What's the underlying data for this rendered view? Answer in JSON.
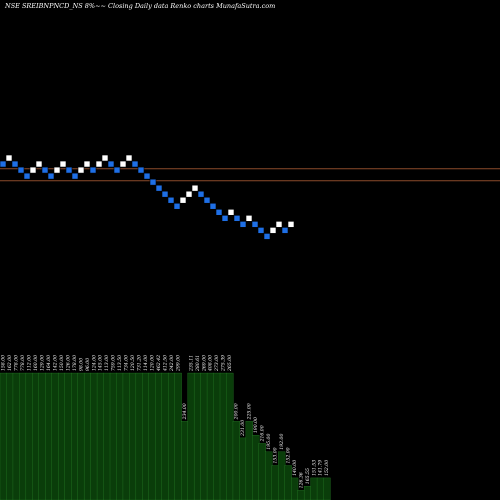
{
  "chart_data": {
    "type": "renko",
    "title": "NSE SREIBNPNCD_NS 8%~~ Closing Daily data Renko charts MunafaSutra.com",
    "colors": {
      "background": "#000000",
      "bull_brick": "#ffffff",
      "bear_brick": "#1e6fe6",
      "reference_line": "#8b4a2a",
      "volume_fill": "#0a3d0a",
      "volume_edge": "#2d8c2d",
      "text": "#ffffff"
    },
    "price_ylim": [
      0,
      1
    ],
    "reference_lines": [
      0.556,
      0.52
    ],
    "bricks": [
      {
        "dir": "down",
        "y": 0.57
      },
      {
        "dir": "up",
        "y": 0.588
      },
      {
        "dir": "down",
        "y": 0.57
      },
      {
        "dir": "down",
        "y": 0.552
      },
      {
        "dir": "down",
        "y": 0.534
      },
      {
        "dir": "up",
        "y": 0.552
      },
      {
        "dir": "up",
        "y": 0.57
      },
      {
        "dir": "down",
        "y": 0.552
      },
      {
        "dir": "down",
        "y": 0.534
      },
      {
        "dir": "up",
        "y": 0.552
      },
      {
        "dir": "up",
        "y": 0.57
      },
      {
        "dir": "down",
        "y": 0.552
      },
      {
        "dir": "down",
        "y": 0.534
      },
      {
        "dir": "up",
        "y": 0.552
      },
      {
        "dir": "up",
        "y": 0.57
      },
      {
        "dir": "down",
        "y": 0.552
      },
      {
        "dir": "up",
        "y": 0.57
      },
      {
        "dir": "up",
        "y": 0.588
      },
      {
        "dir": "down",
        "y": 0.57
      },
      {
        "dir": "down",
        "y": 0.552
      },
      {
        "dir": "up",
        "y": 0.57
      },
      {
        "dir": "up",
        "y": 0.588
      },
      {
        "dir": "down",
        "y": 0.57
      },
      {
        "dir": "down",
        "y": 0.552
      },
      {
        "dir": "down",
        "y": 0.534
      },
      {
        "dir": "down",
        "y": 0.516
      },
      {
        "dir": "down",
        "y": 0.498
      },
      {
        "dir": "down",
        "y": 0.48
      },
      {
        "dir": "down",
        "y": 0.462
      },
      {
        "dir": "down",
        "y": 0.444
      },
      {
        "dir": "up",
        "y": 0.462
      },
      {
        "dir": "up",
        "y": 0.48
      },
      {
        "dir": "up",
        "y": 0.498
      },
      {
        "dir": "down",
        "y": 0.48
      },
      {
        "dir": "down",
        "y": 0.462
      },
      {
        "dir": "down",
        "y": 0.444
      },
      {
        "dir": "down",
        "y": 0.426
      },
      {
        "dir": "down",
        "y": 0.408
      },
      {
        "dir": "up",
        "y": 0.426
      },
      {
        "dir": "down",
        "y": 0.408
      },
      {
        "dir": "down",
        "y": 0.39
      },
      {
        "dir": "up",
        "y": 0.408
      },
      {
        "dir": "down",
        "y": 0.39
      },
      {
        "dir": "down",
        "y": 0.372
      },
      {
        "dir": "down",
        "y": 0.354
      },
      {
        "dir": "up",
        "y": 0.372
      },
      {
        "dir": "up",
        "y": 0.39
      },
      {
        "dir": "down",
        "y": 0.372
      },
      {
        "dir": "up",
        "y": 0.39
      }
    ],
    "volume_ylim": [
      0,
      1
    ],
    "volume": [
      {
        "value": 0.92,
        "label": "158.00"
      },
      {
        "value": 0.92,
        "label": "162.00"
      },
      {
        "value": 0.92,
        "label": "778.00"
      },
      {
        "value": 0.92,
        "label": "778.00"
      },
      {
        "value": 0.92,
        "label": "112.00"
      },
      {
        "value": 0.92,
        "label": "160.00"
      },
      {
        "value": 0.92,
        "label": "129.00"
      },
      {
        "value": 0.92,
        "label": "164.00"
      },
      {
        "value": 0.92,
        "label": "142.00"
      },
      {
        "value": 0.92,
        "label": "150.00"
      },
      {
        "value": 0.92,
        "label": "126.00"
      },
      {
        "value": 0.92,
        "label": "178.00"
      },
      {
        "value": 0.92,
        "label": "98.00"
      },
      {
        "value": 0.92,
        "label": "96.00"
      },
      {
        "value": 0.92,
        "label": "124.00"
      },
      {
        "value": 0.92,
        "label": "145.00"
      },
      {
        "value": 0.92,
        "label": "113.00"
      },
      {
        "value": 0.92,
        "label": "759.00"
      },
      {
        "value": 0.92,
        "label": "113.50"
      },
      {
        "value": 0.92,
        "label": "734.00"
      },
      {
        "value": 0.92,
        "label": "120.50"
      },
      {
        "value": 0.92,
        "label": "731.20"
      },
      {
        "value": 0.92,
        "label": "114.00"
      },
      {
        "value": 0.92,
        "label": "120.00"
      },
      {
        "value": 0.92,
        "label": "462.42"
      },
      {
        "value": 0.92,
        "label": "412.50"
      },
      {
        "value": 0.92,
        "label": "242.00"
      },
      {
        "value": 0.92,
        "label": "299.00"
      },
      {
        "value": 0.57,
        "label": "234.00"
      },
      {
        "value": 0.92,
        "label": "235.11"
      },
      {
        "value": 0.92,
        "label": "280.61"
      },
      {
        "value": 0.92,
        "label": "269.00"
      },
      {
        "value": 0.92,
        "label": "408.00"
      },
      {
        "value": 0.92,
        "label": "273.00"
      },
      {
        "value": 0.92,
        "label": "275.39"
      },
      {
        "value": 0.92,
        "label": "265.00"
      },
      {
        "value": 0.57,
        "label": "200.00"
      },
      {
        "value": 0.45,
        "label": "231.00"
      },
      {
        "value": 0.57,
        "label": "225.00"
      },
      {
        "value": 0.47,
        "label": "190.00"
      },
      {
        "value": 0.41,
        "label": "216.00"
      },
      {
        "value": 0.35,
        "label": "195.00"
      },
      {
        "value": 0.25,
        "label": "153.00"
      },
      {
        "value": 0.35,
        "label": "192.00"
      },
      {
        "value": 0.25,
        "label": "152.00"
      },
      {
        "value": 0.16,
        "label": "140.00"
      },
      {
        "value": 0.07,
        "label": "126.36"
      },
      {
        "value": 0.1,
        "label": "165.55"
      },
      {
        "value": 0.16,
        "label": "151.53"
      },
      {
        "value": 0.16,
        "label": "141.79"
      },
      {
        "value": 0.16,
        "label": "152.00"
      }
    ]
  }
}
